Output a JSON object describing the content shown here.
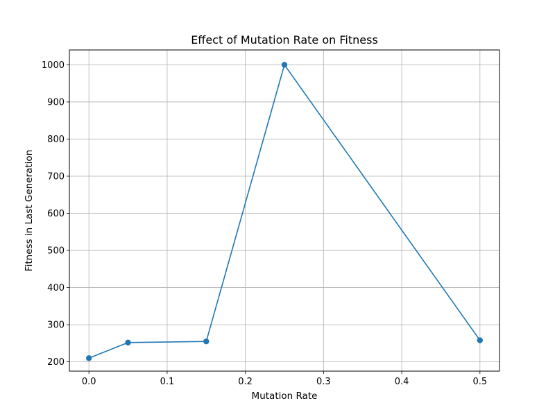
{
  "chart_data": {
    "type": "line",
    "title": "Effect of Mutation Rate on Fitness",
    "xlabel": "Mutation Rate",
    "ylabel": "Fitness in Last Generation",
    "x": [
      0.0,
      0.05,
      0.15,
      0.25,
      0.5
    ],
    "series": [
      {
        "values": [
          210,
          252,
          255,
          1000,
          258
        ],
        "color": "#1f77b4",
        "marker": "circle"
      }
    ],
    "xlim": [
      -0.025,
      0.525
    ],
    "ylim": [
      175,
      1040
    ],
    "x_ticks": [
      0.0,
      0.1,
      0.2,
      0.3,
      0.4,
      0.5
    ],
    "x_tick_labels": [
      "0.0",
      "0.1",
      "0.2",
      "0.3",
      "0.4",
      "0.5"
    ],
    "y_ticks": [
      200,
      300,
      400,
      500,
      600,
      700,
      800,
      900,
      1000
    ],
    "y_tick_labels": [
      "200",
      "300",
      "400",
      "500",
      "600",
      "700",
      "800",
      "900",
      "1000"
    ],
    "grid": true,
    "legend": "none"
  }
}
